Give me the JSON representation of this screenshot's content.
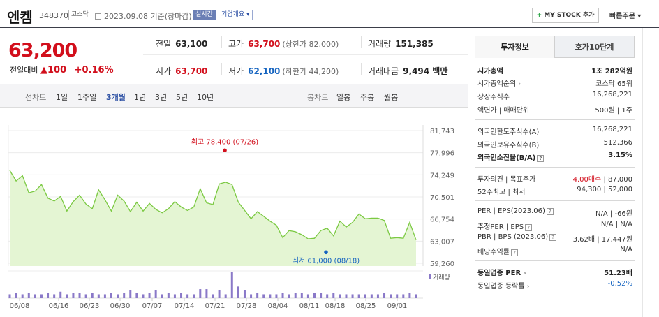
{
  "header": {
    "title": "엔켐",
    "code": "348370",
    "market": "코스닥",
    "date": "2023.09.08 기준(장마감)",
    "realtime": "실시간",
    "company_info": "기업개요",
    "my_stock": "MY STOCK 추가",
    "quick_order": "빠른주문"
  },
  "price": {
    "current": "63,200",
    "change_label": "전일대비",
    "change": "100",
    "percent": "+0.16%"
  },
  "stats": {
    "prev_label": "전일",
    "prev": "63,100",
    "high_label": "고가",
    "high": "63,700",
    "upper_label": "(상한가 82,000)",
    "volume_label": "거래량",
    "volume": "151,385",
    "open_label": "시가",
    "open": "63,700",
    "low_label": "저가",
    "low": "62,100",
    "lower_label": "(하한가 44,200)",
    "amount_label": "거래대금",
    "amount": "9,494 백만"
  },
  "periods": {
    "line_label": "선차트",
    "items": [
      "1일",
      "1주일",
      "3개월",
      "1년",
      "3년",
      "5년",
      "10년"
    ],
    "active": "3개월",
    "candle_label": "봉차트",
    "candle_items": [
      "일봉",
      "주봉",
      "월봉"
    ]
  },
  "chart_data": {
    "type": "area",
    "y_ticks": [
      "81,743",
      "77,996",
      "74,249",
      "70,501",
      "66,754",
      "63,007",
      "59,260"
    ],
    "ylim": [
      59260,
      81743
    ],
    "x_ticks": [
      "06/08",
      "06/16",
      "06/23",
      "06/30",
      "07/07",
      "07/14",
      "07/21",
      "07/28",
      "08/04",
      "08/11",
      "08/18",
      "08/25",
      "09/01"
    ],
    "values": [
      75000,
      73200,
      74100,
      71200,
      71500,
      72600,
      70300,
      69800,
      70600,
      68100,
      69700,
      70800,
      69300,
      68500,
      71700,
      70000,
      68100,
      70800,
      69800,
      68000,
      69600,
      68100,
      69400,
      68400,
      67800,
      68500,
      69700,
      68800,
      68200,
      68800,
      71900,
      69500,
      69200,
      72700,
      73000,
      72600,
      69600,
      68200,
      66800,
      68000,
      67200,
      66400,
      65700,
      63600,
      64800,
      64600,
      64100,
      63400,
      63500,
      64800,
      65200,
      63900,
      66400,
      65400,
      66200,
      67600,
      66800,
      66900,
      66900,
      66500,
      63500,
      63600,
      63500,
      66200,
      63200
    ],
    "high_label": "최고 78,400 (07/26)",
    "high_value": 78400,
    "low_label": "최저 61,000 (08/18)",
    "low_value": 61000,
    "volume_label": "거래량",
    "volumes": [
      3,
      4,
      3,
      4,
      3,
      3,
      4,
      3,
      5,
      3,
      4,
      4,
      3,
      4,
      3,
      3,
      4,
      3,
      4,
      3,
      4,
      3,
      4,
      3,
      3,
      4,
      3,
      4,
      3,
      3,
      5,
      4,
      3,
      4,
      3,
      4,
      3,
      3,
      3,
      4,
      3,
      3,
      3,
      4,
      3,
      4,
      4,
      3,
      4,
      4,
      3,
      4,
      3,
      3,
      3,
      3,
      3,
      3,
      3,
      4,
      3,
      3,
      3,
      4,
      3
    ],
    "volume_spikes": {
      "19": 6,
      "23": 6,
      "30": 7,
      "31": 7,
      "33": 6,
      "35": 20,
      "36": 9,
      "37": 6
    },
    "colors": {
      "line": "#7bc942",
      "fill": "#e4f5d3",
      "volume": "#8a79c8",
      "high": "#d20f1c",
      "low": "#1564c0"
    }
  },
  "invest": {
    "tab_info": "투자정보",
    "tab_quote": "호가10단계",
    "market_cap_label": "시가총액",
    "market_cap": "1조 282억원",
    "rank_label": "시가총액순위",
    "rank": "코스닥 65위",
    "shares_label": "상장주식수",
    "shares": "16,268,221",
    "par_label": "액면가 | 매매단위",
    "par": "500원 | 1주",
    "foreign_limit_label": "외국인한도주식수(A)",
    "foreign_limit": "16,268,221",
    "foreign_hold_label": "외국인보유주식수(B)",
    "foreign_hold": "512,366",
    "foreign_ratio_label": "외국인소진율(B/A)",
    "foreign_ratio": "3.15%",
    "opinion_label": "투자의견 | 목표주가",
    "opinion": "4.00매수",
    "target": "| 87,000",
    "range_label": "52주최고 | 최저",
    "range": "94,300 | 52,000",
    "per_label": "PER | EPS(2023.06)",
    "per": "N/A | -66원",
    "est_per_label": "추정PER | EPS",
    "est_per": "N/A | N/A",
    "pbr_label": "PBR | BPS (2023.06)",
    "pbr": "3.62배 | 17,447원",
    "div_label": "배당수익률",
    "div": "N/A",
    "industry_per_label": "동일업종 PER",
    "industry_per": "51.23배",
    "industry_rate_label": "동일업종 등락률",
    "industry_rate": "-0.52%"
  }
}
